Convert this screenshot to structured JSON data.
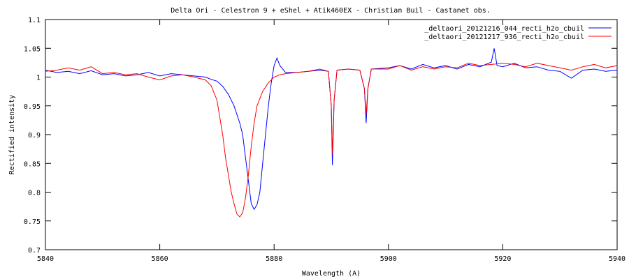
{
  "chart_data": {
    "type": "line",
    "title": "Delta Ori - Celestron 9 + eShel + Atik460EX - Christian Buil - Castanet obs.",
    "xlabel": "Wavelength (A)",
    "ylabel": "Rectified intensity",
    "xlim": [
      5840,
      5940
    ],
    "ylim": [
      0.7,
      1.1
    ],
    "x_ticks": [
      5840,
      5860,
      5880,
      5900,
      5920,
      5940
    ],
    "y_ticks": [
      0.7,
      0.75,
      0.8,
      0.85,
      0.9,
      0.95,
      1,
      1.05,
      1.1
    ],
    "y_tick_labels": [
      "0.7",
      "0.75",
      "0.8",
      "0.85",
      "0.9",
      "0.95",
      "1",
      "1.05",
      "1.1"
    ],
    "grid": false,
    "legend_position": "top-right",
    "series": [
      {
        "name": "_deltaori_20121216_044_recti_h2o_cbuil",
        "color": "#0000ff",
        "points": [
          [
            5840,
            1.012
          ],
          [
            5842,
            1.008
          ],
          [
            5844,
            1.01
          ],
          [
            5846,
            1.006
          ],
          [
            5848,
            1.011
          ],
          [
            5850,
            1.004
          ],
          [
            5852,
            1.006
          ],
          [
            5854,
            1.002
          ],
          [
            5856,
            1.004
          ],
          [
            5858,
            1.008
          ],
          [
            5860,
            1.002
          ],
          [
            5862,
            1.006
          ],
          [
            5864,
            1.004
          ],
          [
            5866,
            1.002
          ],
          [
            5868,
            1.0
          ],
          [
            5869,
            0.996
          ],
          [
            5870,
            0.993
          ],
          [
            5871,
            0.984
          ],
          [
            5872,
            0.97
          ],
          [
            5873,
            0.95
          ],
          [
            5874,
            0.92
          ],
          [
            5874.5,
            0.9
          ],
          [
            5875,
            0.86
          ],
          [
            5875.5,
            0.82
          ],
          [
            5876,
            0.78
          ],
          [
            5876.5,
            0.77
          ],
          [
            5877,
            0.778
          ],
          [
            5877.5,
            0.8
          ],
          [
            5878,
            0.85
          ],
          [
            5878.5,
            0.9
          ],
          [
            5879,
            0.95
          ],
          [
            5879.5,
            0.99
          ],
          [
            5880,
            1.02
          ],
          [
            5880.5,
            1.033
          ],
          [
            5881,
            1.02
          ],
          [
            5882,
            1.008
          ],
          [
            5884,
            1.008
          ],
          [
            5886,
            1.01
          ],
          [
            5888,
            1.012
          ],
          [
            5889.5,
            1.01
          ],
          [
            5890,
            0.95
          ],
          [
            5890.2,
            0.847
          ],
          [
            5890.5,
            0.96
          ],
          [
            5891,
            1.012
          ],
          [
            5893,
            1.014
          ],
          [
            5895,
            1.012
          ],
          [
            5895.8,
            0.98
          ],
          [
            5896.1,
            0.92
          ],
          [
            5896.4,
            0.98
          ],
          [
            5897,
            1.014
          ],
          [
            5900,
            1.016
          ],
          [
            5902,
            1.02
          ],
          [
            5904,
            1.014
          ],
          [
            5906,
            1.022
          ],
          [
            5908,
            1.016
          ],
          [
            5910,
            1.02
          ],
          [
            5912,
            1.014
          ],
          [
            5914,
            1.022
          ],
          [
            5916,
            1.018
          ],
          [
            5918,
            1.026
          ],
          [
            5918.5,
            1.05
          ],
          [
            5919,
            1.02
          ],
          [
            5920,
            1.018
          ],
          [
            5922,
            1.024
          ],
          [
            5924,
            1.016
          ],
          [
            5926,
            1.018
          ],
          [
            5928,
            1.012
          ],
          [
            5930,
            1.01
          ],
          [
            5932,
            0.998
          ],
          [
            5934,
            1.012
          ],
          [
            5936,
            1.014
          ],
          [
            5938,
            1.01
          ],
          [
            5940,
            1.012
          ]
        ]
      },
      {
        "name": "_deltaori_20121217_936_recti_h2o_cbuil",
        "color": "#ff0000",
        "points": [
          [
            5840,
            1.01
          ],
          [
            5842,
            1.012
          ],
          [
            5844,
            1.016
          ],
          [
            5846,
            1.012
          ],
          [
            5848,
            1.018
          ],
          [
            5850,
            1.006
          ],
          [
            5852,
            1.008
          ],
          [
            5854,
            1.004
          ],
          [
            5856,
            1.006
          ],
          [
            5858,
            1.0
          ],
          [
            5860,
            0.995
          ],
          [
            5862,
            1.002
          ],
          [
            5864,
            1.004
          ],
          [
            5866,
            1.0
          ],
          [
            5868,
            0.995
          ],
          [
            5869,
            0.985
          ],
          [
            5870,
            0.96
          ],
          [
            5870.5,
            0.93
          ],
          [
            5871,
            0.9
          ],
          [
            5871.5,
            0.86
          ],
          [
            5872,
            0.83
          ],
          [
            5872.5,
            0.8
          ],
          [
            5873,
            0.78
          ],
          [
            5873.5,
            0.762
          ],
          [
            5874,
            0.757
          ],
          [
            5874.5,
            0.764
          ],
          [
            5875,
            0.79
          ],
          [
            5875.5,
            0.83
          ],
          [
            5876,
            0.88
          ],
          [
            5876.5,
            0.92
          ],
          [
            5877,
            0.95
          ],
          [
            5878,
            0.975
          ],
          [
            5879,
            0.99
          ],
          [
            5880,
            1.0
          ],
          [
            5881,
            1.004
          ],
          [
            5882,
            1.006
          ],
          [
            5884,
            1.008
          ],
          [
            5886,
            1.01
          ],
          [
            5888,
            1.014
          ],
          [
            5889.5,
            1.01
          ],
          [
            5890,
            0.95
          ],
          [
            5890.2,
            0.867
          ],
          [
            5890.5,
            0.96
          ],
          [
            5891,
            1.012
          ],
          [
            5893,
            1.014
          ],
          [
            5895,
            1.012
          ],
          [
            5895.8,
            0.98
          ],
          [
            5896.1,
            0.935
          ],
          [
            5896.4,
            0.98
          ],
          [
            5897,
            1.014
          ],
          [
            5900,
            1.014
          ],
          [
            5902,
            1.02
          ],
          [
            5904,
            1.012
          ],
          [
            5906,
            1.018
          ],
          [
            5908,
            1.014
          ],
          [
            5910,
            1.018
          ],
          [
            5912,
            1.016
          ],
          [
            5914,
            1.024
          ],
          [
            5916,
            1.02
          ],
          [
            5918,
            1.022
          ],
          [
            5920,
            1.024
          ],
          [
            5922,
            1.022
          ],
          [
            5924,
            1.018
          ],
          [
            5926,
            1.024
          ],
          [
            5928,
            1.02
          ],
          [
            5930,
            1.016
          ],
          [
            5932,
            1.012
          ],
          [
            5934,
            1.018
          ],
          [
            5936,
            1.022
          ],
          [
            5938,
            1.016
          ],
          [
            5940,
            1.02
          ]
        ]
      }
    ]
  }
}
